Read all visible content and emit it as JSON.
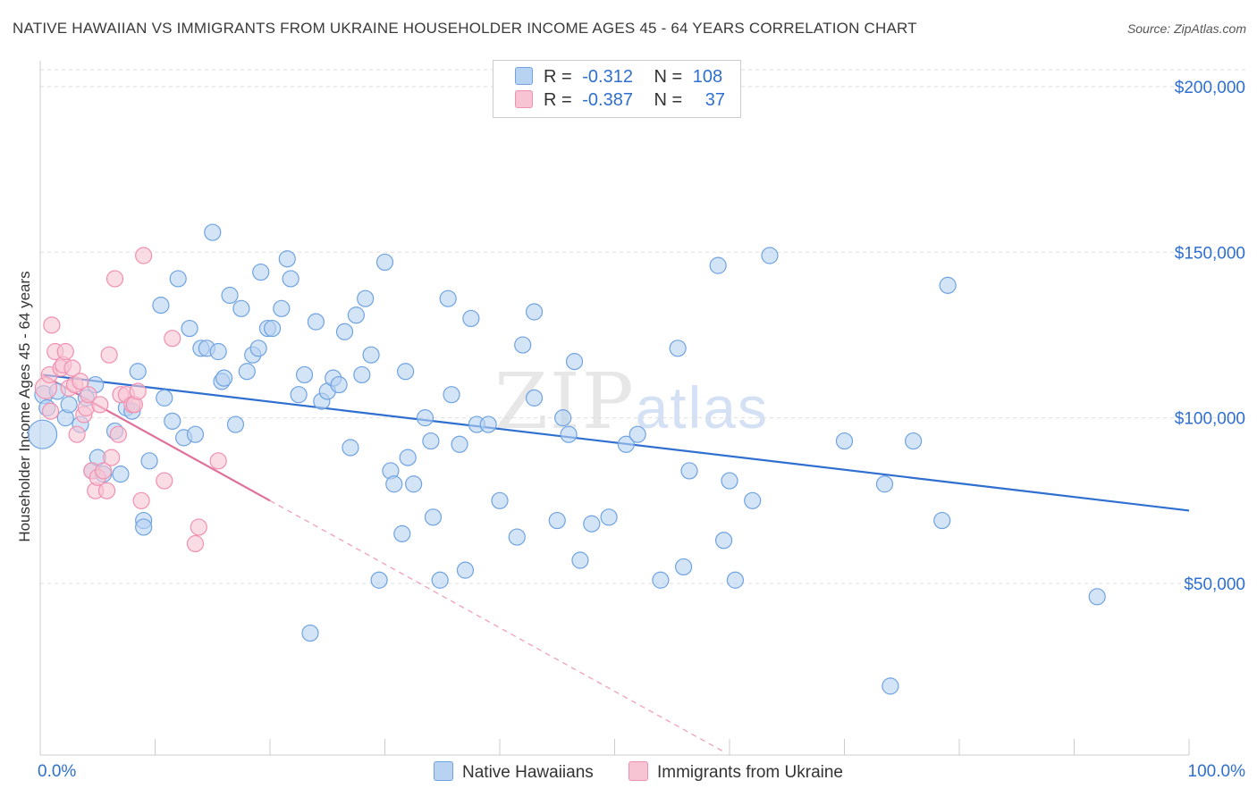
{
  "header": {
    "title": "NATIVE HAWAIIAN VS IMMIGRANTS FROM UKRAINE HOUSEHOLDER INCOME AGES 45 - 64 YEARS CORRELATION CHART",
    "source": "Source: ZipAtlas.com"
  },
  "watermark": {
    "zip": "ZIP",
    "atlas": "atlas"
  },
  "legend": {
    "rows": [
      {
        "r_label": "R =",
        "r_value": "-0.312",
        "n_label": "N =",
        "n_value": "108",
        "color": "#b8d2f2"
      },
      {
        "r_label": "R =",
        "r_value": "-0.387",
        "n_label": "N =",
        "n_value": "37",
        "color": "#f7c4d4"
      }
    ]
  },
  "bottom_legend": {
    "series1": "Native Hawaiians",
    "series2": "Immigrants from Ukraine"
  },
  "chart_data": {
    "type": "scatter",
    "title": "NATIVE HAWAIIAN VS IMMIGRANTS FROM UKRAINE HOUSEHOLDER INCOME AGES 45 - 64 YEARS CORRELATION CHART",
    "xlabel": "",
    "ylabel": "Householder Income Ages 45 - 64 years",
    "xlim": [
      0,
      100
    ],
    "ylim": [
      0,
      210000
    ],
    "x_tick_labels": [
      "0.0%",
      "100.0%"
    ],
    "y_ticks": [
      50000,
      100000,
      150000,
      200000
    ],
    "y_tick_labels": [
      "$50,000",
      "$100,000",
      "$150,000",
      "$200,000"
    ],
    "grid": true,
    "series": [
      {
        "name": "Native Hawaiians",
        "color": "#6fa3e0",
        "fill": "#b8d2f2",
        "trend": {
          "x0": 0.2,
          "y0": 113000,
          "x1": 100,
          "y1": 72000,
          "dashed_until": 100
        },
        "points": [
          [
            0.2,
            95000,
            16
          ],
          [
            0.3,
            107000,
            10
          ],
          [
            0.6,
            103000,
            9
          ],
          [
            1.5,
            108000,
            9
          ],
          [
            2.2,
            100000,
            9
          ],
          [
            2.5,
            104000,
            9
          ],
          [
            3.5,
            98000,
            9
          ],
          [
            4.0,
            106000,
            9
          ],
          [
            4.5,
            84000,
            9
          ],
          [
            4.8,
            110000,
            9
          ],
          [
            5.0,
            88000,
            9
          ],
          [
            5.5,
            83000,
            9
          ],
          [
            6.5,
            96000,
            9
          ],
          [
            7.0,
            83000,
            9
          ],
          [
            7.5,
            103000,
            9
          ],
          [
            8.0,
            102000,
            9
          ],
          [
            8.5,
            114000,
            9
          ],
          [
            9.0,
            69000,
            9
          ],
          [
            9.0,
            67000,
            9
          ],
          [
            9.5,
            87000,
            9
          ],
          [
            10.5,
            134000,
            9
          ],
          [
            10.8,
            106000,
            9
          ],
          [
            11.5,
            99000,
            9
          ],
          [
            12.0,
            142000,
            9
          ],
          [
            12.5,
            94000,
            9
          ],
          [
            13.0,
            127000,
            9
          ],
          [
            13.5,
            95000,
            9
          ],
          [
            14.0,
            121000,
            9
          ],
          [
            14.5,
            121000,
            9
          ],
          [
            15.0,
            156000,
            9
          ],
          [
            15.5,
            120000,
            9
          ],
          [
            15.8,
            111000,
            9
          ],
          [
            16.0,
            112000,
            9
          ],
          [
            16.5,
            137000,
            9
          ],
          [
            17.0,
            98000,
            9
          ],
          [
            17.5,
            133000,
            9
          ],
          [
            18.0,
            114000,
            9
          ],
          [
            18.5,
            119000,
            9
          ],
          [
            19.0,
            121000,
            9
          ],
          [
            19.2,
            144000,
            9
          ],
          [
            19.8,
            127000,
            9
          ],
          [
            20.2,
            127000,
            9
          ],
          [
            21.0,
            133000,
            9
          ],
          [
            21.5,
            148000,
            9
          ],
          [
            21.8,
            142000,
            9
          ],
          [
            22.5,
            107000,
            9
          ],
          [
            23.0,
            113000,
            9
          ],
          [
            23.5,
            35000,
            9
          ],
          [
            24.0,
            129000,
            9
          ],
          [
            24.5,
            105000,
            9
          ],
          [
            25.0,
            108000,
            9
          ],
          [
            25.5,
            112000,
            9
          ],
          [
            26.0,
            110000,
            9
          ],
          [
            26.5,
            126000,
            9
          ],
          [
            27.0,
            91000,
            9
          ],
          [
            27.5,
            131000,
            9
          ],
          [
            28.0,
            113000,
            9
          ],
          [
            28.3,
            136000,
            9
          ],
          [
            28.8,
            119000,
            9
          ],
          [
            29.5,
            51000,
            9
          ],
          [
            30.0,
            147000,
            9
          ],
          [
            30.5,
            84000,
            9
          ],
          [
            30.8,
            80000,
            9
          ],
          [
            31.5,
            65000,
            9
          ],
          [
            31.8,
            114000,
            9
          ],
          [
            32.0,
            88000,
            9
          ],
          [
            32.5,
            80000,
            9
          ],
          [
            33.5,
            100000,
            9
          ],
          [
            34.0,
            93000,
            9
          ],
          [
            34.2,
            70000,
            9
          ],
          [
            34.8,
            51000,
            9
          ],
          [
            35.5,
            136000,
            9
          ],
          [
            35.8,
            107000,
            9
          ],
          [
            36.5,
            92000,
            9
          ],
          [
            37.0,
            54000,
            9
          ],
          [
            37.5,
            130000,
            9
          ],
          [
            38.0,
            98000,
            9
          ],
          [
            39.0,
            98000,
            9
          ],
          [
            40.0,
            75000,
            9
          ],
          [
            41.5,
            64000,
            9
          ],
          [
            42.0,
            122000,
            9
          ],
          [
            43.0,
            132000,
            9
          ],
          [
            43.0,
            106000,
            9
          ],
          [
            45.0,
            69000,
            9
          ],
          [
            45.5,
            100000,
            9
          ],
          [
            46.0,
            95000,
            9
          ],
          [
            46.5,
            117000,
            9
          ],
          [
            47.0,
            57000,
            9
          ],
          [
            48.0,
            68000,
            9
          ],
          [
            49.5,
            70000,
            9
          ],
          [
            51.0,
            92000,
            9
          ],
          [
            52.0,
            95000,
            9
          ],
          [
            54.0,
            51000,
            9
          ],
          [
            55.5,
            121000,
            9
          ],
          [
            56.0,
            55000,
            9
          ],
          [
            56.5,
            84000,
            9
          ],
          [
            59.0,
            146000,
            9
          ],
          [
            59.5,
            63000,
            9
          ],
          [
            60.0,
            81000,
            9
          ],
          [
            60.5,
            51000,
            9
          ],
          [
            62.0,
            75000,
            9
          ],
          [
            63.5,
            149000,
            9
          ],
          [
            70.0,
            93000,
            9
          ],
          [
            73.5,
            80000,
            9
          ],
          [
            74.0,
            19000,
            9
          ],
          [
            76.0,
            93000,
            9
          ],
          [
            78.5,
            69000,
            9
          ],
          [
            79.0,
            140000,
            9
          ],
          [
            92.0,
            46000,
            9
          ]
        ]
      },
      {
        "name": "Immigrants from Ukraine",
        "color": "#f090b0",
        "fill": "#f7c4d4",
        "trend": {
          "x0": 0.2,
          "y0": 113000,
          "x1": 20,
          "y1": 75000,
          "dashed_until": 59.5
        },
        "points": [
          [
            0.5,
            109000,
            12
          ],
          [
            0.8,
            113000,
            9
          ],
          [
            0.9,
            102000,
            9
          ],
          [
            1.0,
            128000,
            9
          ],
          [
            1.3,
            120000,
            9
          ],
          [
            1.8,
            115000,
            9
          ],
          [
            2.0,
            116000,
            9
          ],
          [
            2.2,
            120000,
            9
          ],
          [
            2.5,
            109000,
            9
          ],
          [
            2.8,
            115000,
            9
          ],
          [
            3.0,
            110000,
            9
          ],
          [
            3.2,
            95000,
            9
          ],
          [
            3.5,
            111000,
            9
          ],
          [
            3.8,
            101000,
            9
          ],
          [
            4.0,
            103000,
            9
          ],
          [
            4.2,
            107000,
            9
          ],
          [
            4.5,
            84000,
            9
          ],
          [
            4.8,
            78000,
            9
          ],
          [
            5.0,
            82000,
            9
          ],
          [
            5.2,
            104000,
            9
          ],
          [
            5.5,
            84000,
            9
          ],
          [
            5.8,
            78000,
            9
          ],
          [
            6.0,
            119000,
            9
          ],
          [
            6.2,
            88000,
            9
          ],
          [
            6.5,
            142000,
            9
          ],
          [
            6.8,
            95000,
            9
          ],
          [
            7.0,
            107000,
            9
          ],
          [
            7.5,
            107000,
            9
          ],
          [
            8.0,
            104000,
            9
          ],
          [
            8.2,
            104000,
            9
          ],
          [
            8.5,
            108000,
            9
          ],
          [
            8.8,
            75000,
            9
          ],
          [
            9.0,
            149000,
            9
          ],
          [
            10.8,
            81000,
            9
          ],
          [
            11.5,
            124000,
            9
          ],
          [
            13.8,
            67000,
            9
          ],
          [
            13.5,
            62000,
            9
          ],
          [
            15.5,
            87000,
            9
          ]
        ]
      }
    ]
  }
}
